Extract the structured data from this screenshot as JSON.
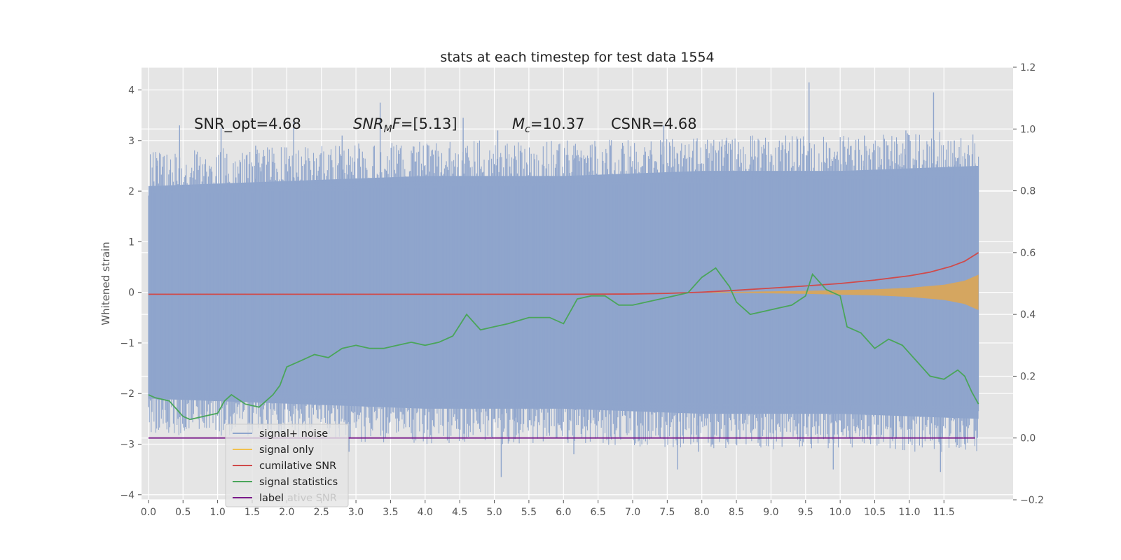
{
  "chart_data": {
    "type": "line",
    "title": "stats at each timestep for test data 1554",
    "ylabel": "Whitened strain",
    "ylabel_right": "",
    "xlim": [
      -0.1,
      12.5
    ],
    "ylim": [
      -4.1,
      4.45
    ],
    "ylim_right": [
      -0.2,
      1.2
    ],
    "x_ticks": [
      "0.0",
      "0.5",
      "1.0",
      "1.5",
      "2.0",
      "2.5",
      "3.0",
      "3.5",
      "4.0",
      "4.5",
      "5.0",
      "5.5",
      "6.0",
      "6.5",
      "7.0",
      "7.5",
      "8.0",
      "8.5",
      "9.0",
      "9.5",
      "10.0",
      "10.5",
      "11.0",
      "11.5"
    ],
    "y_ticks_left": [
      "4",
      "3",
      "2",
      "1",
      "0",
      "−1",
      "−2",
      "−3",
      "−4"
    ],
    "y_ticks_right": [
      "1.2",
      "1.0",
      "0.8",
      "0.6",
      "0.4",
      "0.2",
      "0.0",
      "−0.2"
    ],
    "annotations": [
      {
        "id": "snr_opt",
        "text": "SNR_opt=4.68"
      },
      {
        "id": "snr_mf",
        "text": "SNR_MF=[5.13]"
      },
      {
        "id": "mc",
        "text": "M_c=10.37"
      },
      {
        "id": "csnr",
        "text": "CSNR=4.68"
      }
    ],
    "legend": {
      "placement": "lower-left",
      "entries": [
        {
          "label": "signal+ noise",
          "color": "#8fa5cc"
        },
        {
          "label": "signal only",
          "color": "#f2c14e"
        },
        {
          "label": "cumilative SNR",
          "color": "#d04a4a"
        },
        {
          "label": "signal statistics",
          "color": "#4aa55a"
        },
        {
          "label": "label",
          "color": "#7a1a8a"
        }
      ],
      "occluded_text": "ative SNR"
    },
    "series": [
      {
        "name": "signal+ noise",
        "axis": "left",
        "color": "#8fa5cc",
        "envelope": {
          "x": [
            0.0,
            2.0,
            4.0,
            6.0,
            8.0,
            10.0,
            12.0
          ],
          "upper": [
            2.1,
            2.2,
            2.3,
            2.3,
            2.4,
            2.4,
            2.5
          ],
          "lower": [
            -2.1,
            -2.2,
            -2.3,
            -2.3,
            -2.4,
            -2.4,
            -2.5
          ]
        },
        "spikes": [
          {
            "x": 0.12,
            "y": 2.5
          },
          {
            "x": 0.45,
            "y": 3.3
          },
          {
            "x": 1.05,
            "y": 3.25
          },
          {
            "x": 1.55,
            "y": 2.9
          },
          {
            "x": 2.1,
            "y": 3.4
          },
          {
            "x": 2.8,
            "y": 3.1
          },
          {
            "x": 3.35,
            "y": 3.75
          },
          {
            "x": 4.55,
            "y": 3.45
          },
          {
            "x": 5.05,
            "y": 3.2
          },
          {
            "x": 6.15,
            "y": 2.9
          },
          {
            "x": 7.45,
            "y": 3.3
          },
          {
            "x": 8.35,
            "y": 3.0
          },
          {
            "x": 9.55,
            "y": 4.15
          },
          {
            "x": 10.35,
            "y": 3.1
          },
          {
            "x": 10.95,
            "y": 3.2
          },
          {
            "x": 11.35,
            "y": 3.95
          },
          {
            "x": 11.65,
            "y": 3.0
          },
          {
            "x": 11.95,
            "y": 2.55
          },
          {
            "x": 1.1,
            "y": -2.6
          },
          {
            "x": 2.9,
            "y": -3.15
          },
          {
            "x": 3.7,
            "y": -2.6
          },
          {
            "x": 5.1,
            "y": -3.65
          },
          {
            "x": 5.3,
            "y": -2.9
          },
          {
            "x": 6.15,
            "y": -3.2
          },
          {
            "x": 7.65,
            "y": -3.5
          },
          {
            "x": 7.95,
            "y": -3.15
          },
          {
            "x": 8.55,
            "y": -2.9
          },
          {
            "x": 9.9,
            "y": -3.5
          },
          {
            "x": 10.75,
            "y": -2.9
          },
          {
            "x": 11.45,
            "y": -3.55
          },
          {
            "x": 11.8,
            "y": -3.0
          }
        ]
      },
      {
        "name": "signal only",
        "axis": "left",
        "color": "#d9a55a",
        "envelope": {
          "x": [
            7.5,
            8.5,
            9.5,
            10.5,
            11.0,
            11.5,
            11.8,
            12.0
          ],
          "upper": [
            0.0,
            0.01,
            0.03,
            0.06,
            0.09,
            0.15,
            0.23,
            0.35
          ],
          "lower": [
            0.0,
            -0.01,
            -0.03,
            -0.06,
            -0.09,
            -0.15,
            -0.23,
            -0.35
          ]
        }
      },
      {
        "name": "cumilative SNR",
        "axis": "right",
        "color": "#d04a4a",
        "x": [
          0.0,
          2.0,
          4.0,
          6.0,
          7.0,
          7.5,
          8.0,
          8.5,
          9.0,
          9.5,
          10.0,
          10.5,
          11.0,
          11.3,
          11.6,
          11.8,
          12.0
        ],
        "values": [
          0.465,
          0.465,
          0.465,
          0.465,
          0.466,
          0.468,
          0.472,
          0.478,
          0.485,
          0.492,
          0.5,
          0.511,
          0.525,
          0.537,
          0.555,
          0.572,
          0.6
        ]
      },
      {
        "name": "signal statistics",
        "axis": "right",
        "color": "#4aa55a",
        "x": [
          0.0,
          0.1,
          0.3,
          0.5,
          0.6,
          0.8,
          1.0,
          1.1,
          1.2,
          1.4,
          1.6,
          1.8,
          1.9,
          2.0,
          2.2,
          2.4,
          2.6,
          2.8,
          3.0,
          3.2,
          3.4,
          3.6,
          3.8,
          4.0,
          4.2,
          4.4,
          4.6,
          4.8,
          5.0,
          5.2,
          5.5,
          5.8,
          6.0,
          6.2,
          6.4,
          6.6,
          6.8,
          7.0,
          7.2,
          7.4,
          7.6,
          7.8,
          8.0,
          8.2,
          8.3,
          8.4,
          8.5,
          8.7,
          8.9,
          9.1,
          9.3,
          9.5,
          9.6,
          9.8,
          10.0,
          10.1,
          10.3,
          10.5,
          10.7,
          10.9,
          11.1,
          11.3,
          11.5,
          11.7,
          11.8,
          11.9,
          12.0
        ],
        "values": [
          0.14,
          0.13,
          0.12,
          0.07,
          0.06,
          0.07,
          0.08,
          0.12,
          0.14,
          0.11,
          0.1,
          0.14,
          0.17,
          0.23,
          0.25,
          0.27,
          0.26,
          0.29,
          0.3,
          0.29,
          0.29,
          0.3,
          0.31,
          0.3,
          0.31,
          0.33,
          0.4,
          0.35,
          0.36,
          0.37,
          0.39,
          0.39,
          0.37,
          0.45,
          0.46,
          0.46,
          0.43,
          0.43,
          0.44,
          0.45,
          0.46,
          0.47,
          0.52,
          0.55,
          0.52,
          0.49,
          0.44,
          0.4,
          0.41,
          0.42,
          0.43,
          0.46,
          0.53,
          0.48,
          0.46,
          0.36,
          0.34,
          0.29,
          0.32,
          0.3,
          0.25,
          0.2,
          0.19,
          0.22,
          0.2,
          0.15,
          0.11
        ]
      },
      {
        "name": "label",
        "axis": "right",
        "color": "#7a1a8a",
        "x": [
          0.0,
          11.95
        ],
        "values": [
          0.0,
          0.0
        ]
      }
    ]
  }
}
